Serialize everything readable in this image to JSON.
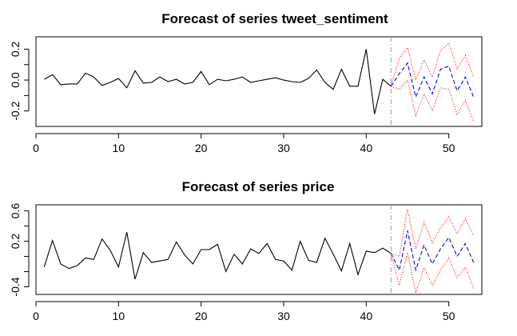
{
  "chart_data": [
    {
      "type": "line",
      "title": "Forecast of series tweet_sentiment",
      "xlabel": "",
      "ylabel": "",
      "xlim": [
        0,
        54
      ],
      "ylim": [
        -0.3,
        0.28
      ],
      "x_ticks": [
        0,
        10,
        20,
        30,
        40,
        50
      ],
      "y_ticks": [
        -0.2,
        -0.1,
        0.0,
        0.1,
        0.2
      ],
      "y_tick_labels": [
        "-0.2",
        "",
        "0.0",
        "",
        "0.2"
      ],
      "vline_x": 43,
      "grid": false,
      "colors": {
        "observed": "#000000",
        "forecast": "#0000ff",
        "interval": "#ff0000",
        "vline": "#999999"
      },
      "series": [
        {
          "role": "observed",
          "x": [
            1,
            2,
            3,
            4,
            5,
            6,
            7,
            8,
            9,
            10,
            11,
            12,
            13,
            14,
            15,
            16,
            17,
            18,
            19,
            20,
            21,
            22,
            23,
            24,
            25,
            26,
            27,
            28,
            29,
            30,
            31,
            32,
            33,
            34,
            35,
            36,
            37,
            38,
            39,
            40,
            41,
            42,
            43
          ],
          "values": [
            0.005,
            0.035,
            -0.03,
            -0.025,
            -0.025,
            0.045,
            0.02,
            -0.035,
            -0.015,
            0.01,
            -0.05,
            0.06,
            -0.02,
            -0.015,
            0.02,
            -0.01,
            0.005,
            -0.025,
            -0.015,
            0.055,
            -0.03,
            0.005,
            -0.005,
            0.005,
            0.02,
            -0.015,
            -0.005,
            0.005,
            0.015,
            0.0,
            -0.01,
            -0.015,
            0.01,
            0.065,
            -0.015,
            -0.06,
            0.07,
            -0.04,
            -0.04,
            0.2,
            -0.22,
            0.005,
            -0.04
          ]
        },
        {
          "role": "forecast",
          "x": [
            43,
            44,
            45,
            46,
            47,
            48,
            49,
            50,
            51,
            52,
            53
          ],
          "values": [
            -0.04,
            0.04,
            0.11,
            -0.11,
            0.02,
            -0.09,
            0.07,
            0.09,
            -0.07,
            0.02,
            -0.11
          ]
        },
        {
          "role": "upper",
          "x": [
            43,
            44,
            45,
            46,
            47,
            48,
            49,
            50,
            51,
            52,
            53
          ],
          "values": [
            -0.04,
            0.14,
            0.21,
            0.0,
            0.13,
            0.02,
            0.19,
            0.24,
            0.07,
            0.16,
            0.02
          ]
        },
        {
          "role": "lower",
          "x": [
            43,
            44,
            45,
            46,
            47,
            48,
            49,
            50,
            51,
            52,
            53
          ],
          "values": [
            -0.04,
            -0.06,
            0.0,
            -0.23,
            -0.09,
            -0.2,
            -0.05,
            -0.06,
            -0.22,
            -0.13,
            -0.27
          ]
        }
      ]
    },
    {
      "type": "line",
      "title": "Forecast of series price",
      "xlabel": "",
      "ylabel": "",
      "xlim": [
        0,
        54
      ],
      "ylim": [
        -0.5,
        0.68
      ],
      "x_ticks": [
        0,
        10,
        20,
        30,
        40,
        50
      ],
      "y_ticks": [
        -0.4,
        -0.2,
        0.0,
        0.2,
        0.4,
        0.6
      ],
      "y_tick_labels": [
        "-0.4",
        "",
        "",
        "0.2",
        "",
        "0.6"
      ],
      "vline_x": 43,
      "grid": false,
      "colors": {
        "observed": "#000000",
        "forecast": "#0000ff",
        "interval": "#ff0000",
        "vline": "#999999"
      },
      "series": [
        {
          "role": "observed",
          "x": [
            1,
            2,
            3,
            4,
            5,
            6,
            7,
            8,
            9,
            10,
            11,
            12,
            13,
            14,
            15,
            16,
            17,
            18,
            19,
            20,
            21,
            22,
            23,
            24,
            25,
            26,
            27,
            28,
            29,
            30,
            31,
            32,
            33,
            34,
            35,
            36,
            37,
            38,
            39,
            40,
            41,
            42,
            43
          ],
          "values": [
            -0.14,
            0.21,
            -0.1,
            -0.16,
            -0.12,
            -0.02,
            -0.04,
            0.23,
            0.08,
            -0.14,
            0.32,
            -0.3,
            0.05,
            -0.08,
            -0.06,
            -0.04,
            0.19,
            0.02,
            -0.1,
            0.09,
            0.09,
            0.16,
            -0.2,
            0.03,
            -0.1,
            0.1,
            0.04,
            0.17,
            -0.04,
            -0.06,
            -0.18,
            0.2,
            -0.05,
            -0.08,
            0.24,
            0.03,
            -0.19,
            0.17,
            -0.24,
            0.07,
            0.05,
            0.11,
            0.04
          ]
        },
        {
          "role": "forecast",
          "x": [
            43,
            44,
            45,
            46,
            47,
            48,
            49,
            50,
            51,
            52,
            53
          ],
          "values": [
            0.04,
            -0.18,
            0.34,
            -0.18,
            0.15,
            -0.1,
            0.1,
            0.25,
            0.0,
            0.17,
            -0.08
          ]
        },
        {
          "role": "upper",
          "x": [
            43,
            44,
            45,
            46,
            47,
            48,
            49,
            50,
            51,
            52,
            53
          ],
          "values": [
            0.04,
            0.0,
            0.62,
            0.1,
            0.45,
            0.18,
            0.38,
            0.52,
            0.3,
            0.5,
            0.27
          ]
        },
        {
          "role": "lower",
          "x": [
            43,
            44,
            45,
            46,
            47,
            48,
            49,
            50,
            51,
            52,
            53
          ],
          "values": [
            0.04,
            -0.38,
            0.05,
            -0.48,
            -0.15,
            -0.38,
            -0.18,
            -0.02,
            -0.28,
            -0.14,
            -0.42
          ]
        }
      ]
    }
  ]
}
